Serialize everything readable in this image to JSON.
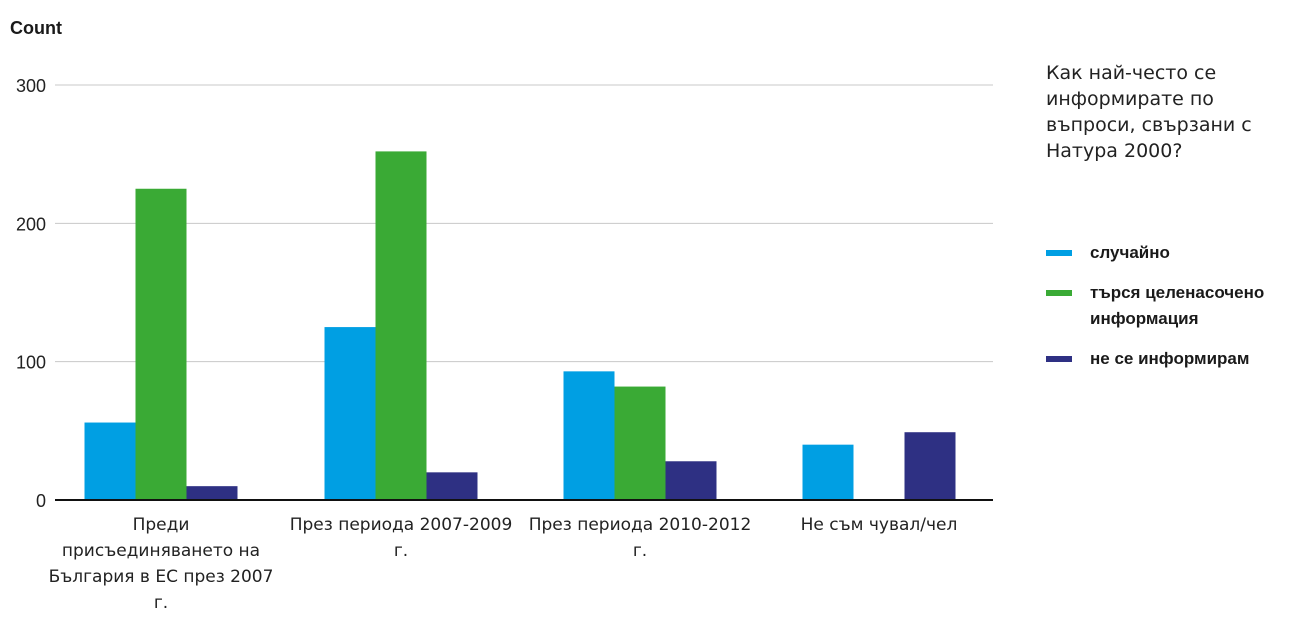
{
  "chart_data": {
    "type": "bar",
    "ylabel": "Count",
    "ylim": [
      0,
      300
    ],
    "yticks": [
      0,
      100,
      200,
      300
    ],
    "grid": true,
    "categories": [
      "Преди присъединяването на България в ЕС през 2007 г.",
      "През периода 2007-2009 г.",
      "През периода 2010-2012 г.",
      "Не съм чувал/чел"
    ],
    "legend_title": "Как най-често се информирате по въпроси, свързани с Натура 2000?",
    "legend_position": "right",
    "series": [
      {
        "name": "случайно",
        "color": "#009fe3",
        "values": [
          56,
          125,
          93,
          40
        ]
      },
      {
        "name": "търся целенасочено информация",
        "color": "#3aaa35",
        "values": [
          225,
          252,
          82,
          0
        ]
      },
      {
        "name": "не се информирам",
        "color": "#2e3083",
        "values": [
          10,
          20,
          28,
          49
        ]
      }
    ]
  }
}
